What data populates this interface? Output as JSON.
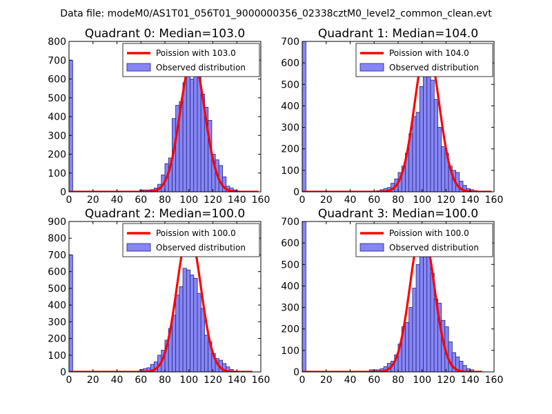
{
  "figure": {
    "suptitle": "Data file: modeM0/AS1T01_056T01_9000000356_02338cztM0_level2_common_clean.evt"
  },
  "chart_data": [
    {
      "type": "bar",
      "title": "Quadrant 0: Median=103.0",
      "xlim": [
        0,
        160
      ],
      "ylim": [
        0,
        800
      ],
      "xticks": [
        "0",
        "20",
        "40",
        "60",
        "80",
        "100",
        "120",
        "140",
        "160"
      ],
      "yticks": [
        "0",
        "100",
        "200",
        "300",
        "400",
        "500",
        "600",
        "700",
        "800"
      ],
      "bin_width": 3.1,
      "bins": [
        [
          0,
          700
        ],
        [
          59,
          10
        ],
        [
          62,
          10
        ],
        [
          65,
          10
        ],
        [
          68,
          12
        ],
        [
          71,
          20
        ],
        [
          74,
          40
        ],
        [
          77,
          90
        ],
        [
          80,
          150
        ],
        [
          83,
          180
        ],
        [
          86,
          390
        ],
        [
          89,
          460
        ],
        [
          92,
          480
        ],
        [
          95,
          580
        ],
        [
          98,
          640
        ],
        [
          101,
          600
        ],
        [
          104,
          680
        ],
        [
          107,
          620
        ],
        [
          110,
          520
        ],
        [
          113,
          450
        ],
        [
          116,
          380
        ],
        [
          119,
          200
        ],
        [
          122,
          170
        ],
        [
          125,
          140
        ],
        [
          128,
          80
        ],
        [
          131,
          30
        ],
        [
          134,
          20
        ],
        [
          137,
          10
        ]
      ],
      "curve": {
        "mean": 103.0,
        "peak": 715,
        "xrange": [
          0,
          158
        ]
      },
      "legend": {
        "line_label": "Poission with 103.0",
        "bar_label": "Observed distribution"
      }
    },
    {
      "type": "bar",
      "title": "Quadrant 1: Median=104.0",
      "xlim": [
        0,
        160
      ],
      "ylim": [
        0,
        700
      ],
      "xticks": [
        "0",
        "20",
        "40",
        "60",
        "80",
        "100",
        "120",
        "140",
        "160"
      ],
      "yticks": [
        "0",
        "100",
        "200",
        "300",
        "400",
        "500",
        "600",
        "700"
      ],
      "bin_width": 3.1,
      "bins": [
        [
          0,
          700
        ],
        [
          62,
          5
        ],
        [
          65,
          10
        ],
        [
          68,
          15
        ],
        [
          71,
          20
        ],
        [
          74,
          40
        ],
        [
          77,
          60
        ],
        [
          80,
          90
        ],
        [
          83,
          120
        ],
        [
          86,
          180
        ],
        [
          89,
          270
        ],
        [
          92,
          350
        ],
        [
          95,
          370
        ],
        [
          98,
          490
        ],
        [
          101,
          610
        ],
        [
          104,
          670
        ],
        [
          107,
          520
        ],
        [
          110,
          430
        ],
        [
          113,
          300
        ],
        [
          116,
          210
        ],
        [
          119,
          180
        ],
        [
          122,
          120
        ],
        [
          125,
          100
        ],
        [
          128,
          90
        ],
        [
          131,
          50
        ],
        [
          134,
          30
        ],
        [
          137,
          15
        ],
        [
          140,
          10
        ],
        [
          143,
          5
        ]
      ],
      "curve": {
        "mean": 104.0,
        "peak": 680,
        "xrange": [
          0,
          158
        ]
      },
      "legend": {
        "line_label": "Poission with 104.0",
        "bar_label": "Observed distribution"
      }
    },
    {
      "type": "bar",
      "title": "Quadrant 2: Median=100.0",
      "xlim": [
        0,
        160
      ],
      "ylim": [
        0,
        900
      ],
      "xticks": [
        "0",
        "20",
        "40",
        "60",
        "80",
        "100",
        "120",
        "140",
        "160"
      ],
      "yticks": [
        "0",
        "100",
        "200",
        "300",
        "400",
        "500",
        "600",
        "700",
        "800",
        "900"
      ],
      "bin_width": 3.1,
      "bins": [
        [
          0,
          700
        ],
        [
          59,
          15
        ],
        [
          62,
          20
        ],
        [
          65,
          25
        ],
        [
          68,
          45
        ],
        [
          71,
          60
        ],
        [
          74,
          100
        ],
        [
          77,
          130
        ],
        [
          80,
          190
        ],
        [
          83,
          260
        ],
        [
          86,
          340
        ],
        [
          89,
          460
        ],
        [
          92,
          510
        ],
        [
          95,
          620
        ],
        [
          98,
          610
        ],
        [
          101,
          580
        ],
        [
          104,
          560
        ],
        [
          107,
          470
        ],
        [
          110,
          380
        ],
        [
          113,
          220
        ],
        [
          116,
          180
        ],
        [
          119,
          110
        ],
        [
          122,
          80
        ],
        [
          125,
          70
        ],
        [
          128,
          50
        ],
        [
          131,
          30
        ],
        [
          134,
          15
        ]
      ],
      "curve": {
        "mean": 100.0,
        "peak": 840,
        "xrange": [
          0,
          153
        ]
      },
      "legend": {
        "line_label": "Poission with 100.0",
        "bar_label": "Observed distribution"
      }
    },
    {
      "type": "bar",
      "title": "Quadrant 3: Median=100.0",
      "xlim": [
        0,
        160
      ],
      "ylim": [
        0,
        700
      ],
      "xticks": [
        "0",
        "20",
        "40",
        "60",
        "80",
        "100",
        "120",
        "140",
        "160"
      ],
      "yticks": [
        "0",
        "100",
        "200",
        "300",
        "400",
        "500",
        "600",
        "700"
      ],
      "bin_width": 3.1,
      "bins": [
        [
          0,
          700
        ],
        [
          56,
          10
        ],
        [
          59,
          10
        ],
        [
          62,
          10
        ],
        [
          65,
          15
        ],
        [
          68,
          25
        ],
        [
          71,
          40
        ],
        [
          74,
          50
        ],
        [
          77,
          80
        ],
        [
          80,
          130
        ],
        [
          83,
          210
        ],
        [
          86,
          230
        ],
        [
          89,
          300
        ],
        [
          92,
          390
        ],
        [
          95,
          500
        ],
        [
          98,
          600
        ],
        [
          101,
          570
        ],
        [
          104,
          560
        ],
        [
          107,
          460
        ],
        [
          110,
          340
        ],
        [
          113,
          320
        ],
        [
          116,
          240
        ],
        [
          119,
          210
        ],
        [
          122,
          140
        ],
        [
          125,
          90
        ],
        [
          128,
          70
        ],
        [
          131,
          50
        ],
        [
          134,
          30
        ],
        [
          137,
          15
        ],
        [
          140,
          10
        ]
      ],
      "curve": {
        "mean": 100.0,
        "peak": 670,
        "xrange": [
          0,
          150
        ]
      },
      "legend": {
        "line_label": "Poission with 100.0",
        "bar_label": "Observed distribution"
      }
    }
  ]
}
